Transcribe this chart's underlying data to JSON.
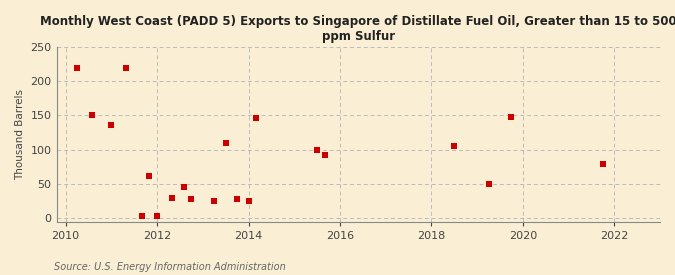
{
  "title": "Monthly West Coast (PADD 5) Exports to Singapore of Distillate Fuel Oil, Greater than 15 to 500\nppm Sulfur",
  "ylabel": "Thousand Barrels",
  "source": "Source: U.S. Energy Information Administration",
  "background_color": "#faefd4",
  "plot_bg_color": "#faefd4",
  "marker_color": "#cc0000",
  "marker": "s",
  "marker_size": 4,
  "xlim": [
    2009.8,
    2023.0
  ],
  "ylim": [
    -5,
    250
  ],
  "yticks": [
    0,
    50,
    100,
    150,
    200,
    250
  ],
  "xticks": [
    2010,
    2012,
    2014,
    2016,
    2018,
    2020,
    2022
  ],
  "data_x": [
    2010.25,
    2010.58,
    2011.0,
    2011.33,
    2011.67,
    2011.83,
    2012.0,
    2012.33,
    2012.58,
    2012.75,
    2013.25,
    2013.5,
    2013.75,
    2014.0,
    2014.17,
    2015.5,
    2015.67,
    2018.5,
    2019.25,
    2019.75,
    2021.75
  ],
  "data_y": [
    220,
    150,
    136,
    220,
    3,
    62,
    3,
    30,
    45,
    28,
    25,
    110,
    28,
    25,
    146,
    100,
    93,
    106,
    50,
    148,
    79
  ],
  "grid_color": "#bbbbbb",
  "grid_linestyle": "--"
}
